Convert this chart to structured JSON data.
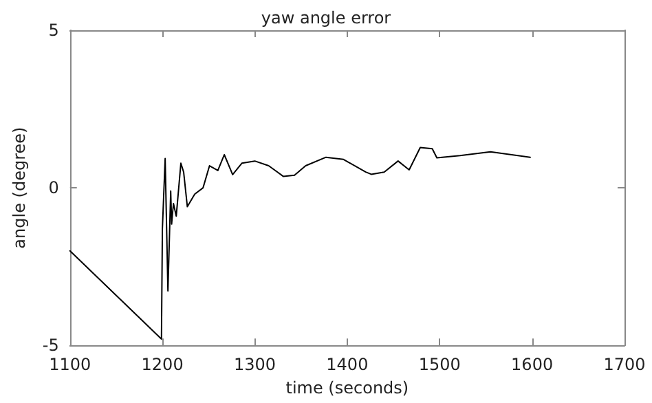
{
  "chart_data": {
    "type": "line",
    "title": "yaw angle error",
    "xlabel": "time (seconds)",
    "ylabel": "angle (degree)",
    "xlim": [
      1100,
      1700
    ],
    "xticks": [
      1100,
      1200,
      1300,
      1400,
      1500,
      1600,
      1700
    ],
    "ylim": [
      -5,
      5
    ],
    "yticks": [
      -5,
      0,
      5
    ],
    "grid": false,
    "marker": "none",
    "line_style": "solid",
    "series": [
      {
        "color": "#000000",
        "x": [
          1100,
          1199,
          1200,
          1203,
          1206,
          1209,
          1210,
          1211,
          1212,
          1215,
          1220,
          1223,
          1227,
          1235,
          1244,
          1251,
          1260,
          1267,
          1276,
          1286,
          1300,
          1315,
          1331,
          1343,
          1355,
          1377,
          1396,
          1420,
          1426,
          1440,
          1455,
          1467,
          1479,
          1492,
          1497,
          1522,
          1555,
          1598
        ],
        "values": [
          -2.0,
          -4.8,
          -1.3,
          0.93,
          -3.27,
          -0.1,
          -1.15,
          -0.8,
          -0.5,
          -0.9,
          0.78,
          0.5,
          -0.6,
          -0.2,
          0,
          0.7,
          0.55,
          1.05,
          0.42,
          0.78,
          0.85,
          0.7,
          0.36,
          0.4,
          0.7,
          0.97,
          0.9,
          0.5,
          0.43,
          0.5,
          0.85,
          0.57,
          1.28,
          1.24,
          0.95,
          1.02,
          1.14,
          0.97
        ]
      }
    ]
  }
}
